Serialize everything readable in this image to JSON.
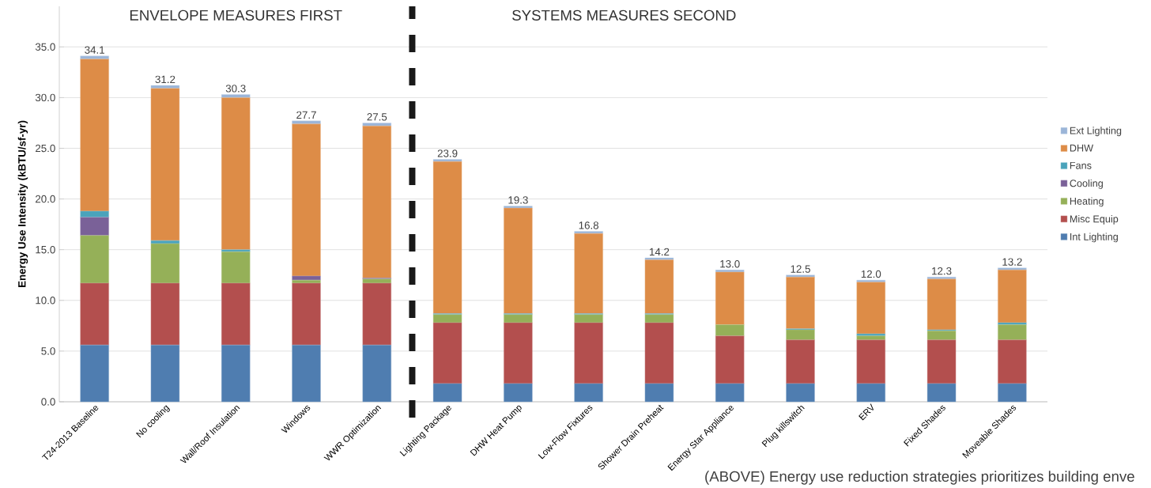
{
  "chart_data": {
    "type": "bar",
    "stacked": true,
    "ylabel": "Energy Use Intensity (kBTU/sf-yr)",
    "categories": [
      "T24-2013 Baseline",
      "No cooling",
      "Wall/Roof Insulation",
      "Windows",
      "WWR Optimization",
      "Lighting Package",
      "DHW Heat Pump",
      "Low-Flow Fixtures",
      "Shower Drain Preheat",
      "Energy Star Appliance",
      "Plug killswitch",
      "ERV",
      "Fixed Shades",
      "Moveable Shades"
    ],
    "series": [
      {
        "name": "Int Lighting",
        "color": "#4f7db0",
        "values": [
          5.6,
          5.6,
          5.6,
          5.6,
          5.6,
          1.8,
          1.8,
          1.8,
          1.8,
          1.8,
          1.8,
          1.8,
          1.8,
          1.8
        ]
      },
      {
        "name": "Misc Equip",
        "color": "#b34f4e",
        "values": [
          6.1,
          6.1,
          6.1,
          6.1,
          6.1,
          6.0,
          6.0,
          6.0,
          6.0,
          4.7,
          4.3,
          4.3,
          4.3,
          4.3
        ]
      },
      {
        "name": "Heating",
        "color": "#95b058",
        "values": [
          4.7,
          3.9,
          3.1,
          0.3,
          0.4,
          0.8,
          0.8,
          0.8,
          0.8,
          1.1,
          1.0,
          0.4,
          0.9,
          1.5
        ]
      },
      {
        "name": "Cooling",
        "color": "#7a6198",
        "values": [
          1.8,
          0,
          0,
          0.4,
          0.1,
          0,
          0,
          0,
          0,
          0,
          0,
          0,
          0,
          0
        ]
      },
      {
        "name": "Fans",
        "color": "#4aa3bb",
        "values": [
          0.6,
          0.3,
          0.2,
          0,
          0,
          0.1,
          0.1,
          0.1,
          0.1,
          0,
          0.1,
          0.2,
          0.1,
          0.2
        ]
      },
      {
        "name": "DHW",
        "color": "#dd8c47",
        "values": [
          15.0,
          15.0,
          15.0,
          15.0,
          15.0,
          15.0,
          10.4,
          7.9,
          5.3,
          5.2,
          5.1,
          5.1,
          5.0,
          5.2
        ]
      },
      {
        "name": "Ext Lighting",
        "color": "#9bb5d8",
        "values": [
          0.3,
          0.3,
          0.3,
          0.3,
          0.3,
          0.2,
          0.2,
          0.2,
          0.2,
          0.2,
          0.2,
          0.2,
          0.2,
          0.2
        ]
      }
    ],
    "totals": [
      "34.1",
      "31.2",
      "30.3",
      "27.7",
      "27.5",
      "23.9",
      "19.3",
      "16.8",
      "14.2",
      "13.0",
      "12.5",
      "12.0",
      "12.3",
      "13.2"
    ],
    "ylim": [
      0,
      39
    ],
    "yticks": [
      {
        "value": 0,
        "label": "0.0"
      },
      {
        "value": 5,
        "label": "5.0"
      },
      {
        "value": 10,
        "label": "10.0"
      },
      {
        "value": 15,
        "label": "15.0"
      },
      {
        "value": 20,
        "label": "20.0"
      },
      {
        "value": 25,
        "label": "25.0"
      },
      {
        "value": 30,
        "label": "30.0"
      },
      {
        "value": 35,
        "label": "35.0"
      }
    ],
    "grid": "y",
    "legend": "right",
    "annotations": [
      "ENVELOPE MEASURES FIRST",
      "SYSTEMS MEASURES SECOND",
      "(ABOVE) Energy use reduction strategies prioritizes building enve"
    ]
  }
}
